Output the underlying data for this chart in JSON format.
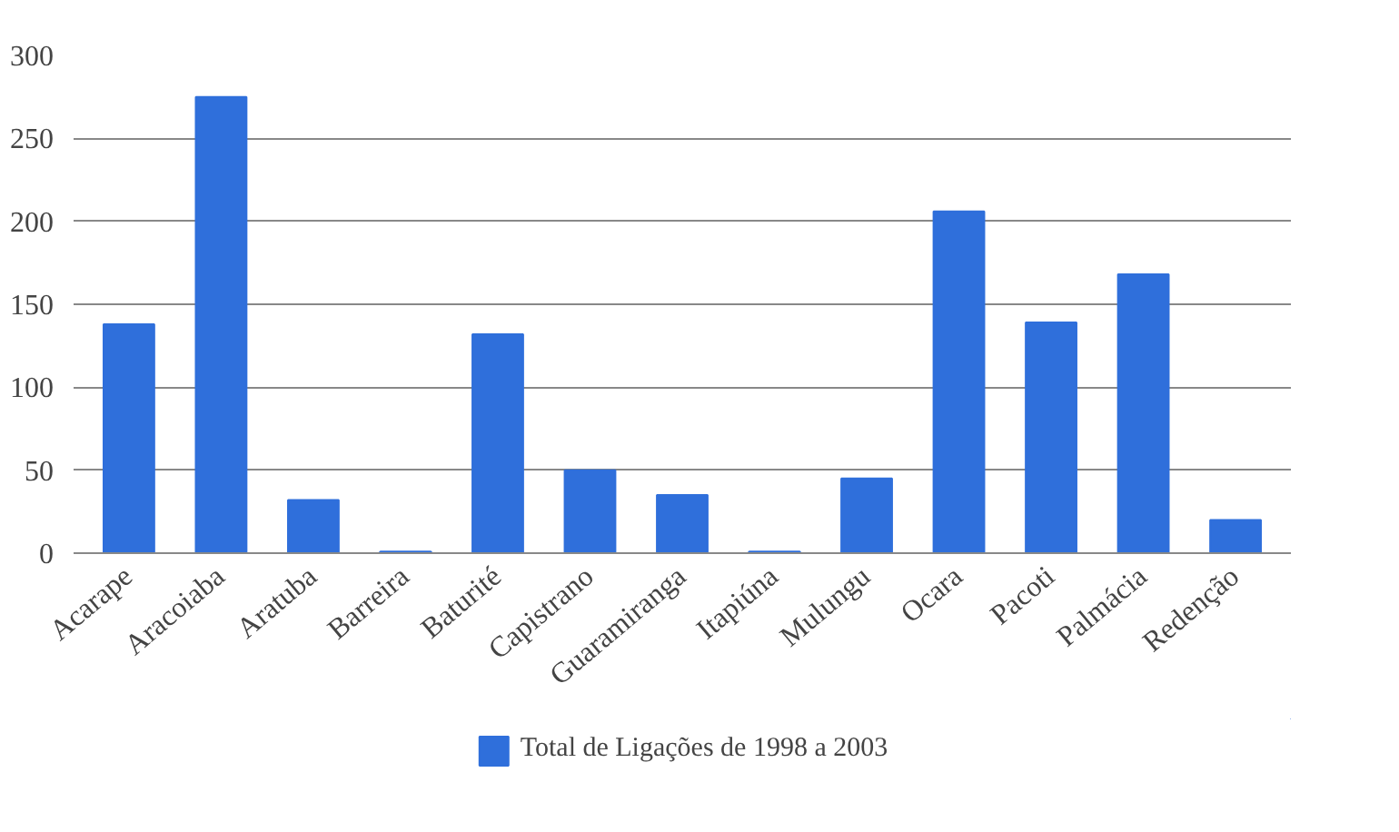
{
  "chart_data": {
    "type": "bar",
    "categories": [
      "Acarape",
      "Aracoiaba",
      "Aratuba",
      "Barreira",
      "Baturité",
      "Capistrano",
      "Guaramiranga",
      "Itapiúna",
      "Mulungu",
      "Ocara",
      "Pacoti",
      "Palmácia",
      "Redenção"
    ],
    "series": [
      {
        "name": "Total de Ligações de 1998 a 2003",
        "color": "#2f6fdb",
        "values": [
          138,
          275,
          32,
          1,
          132,
          50,
          35,
          1,
          45,
          206,
          139,
          168,
          20
        ]
      }
    ],
    "ylim": [
      0,
      300
    ],
    "yticks": [
      0,
      50,
      100,
      150,
      200,
      250,
      300
    ],
    "grid": "y",
    "legend": "bottom"
  }
}
